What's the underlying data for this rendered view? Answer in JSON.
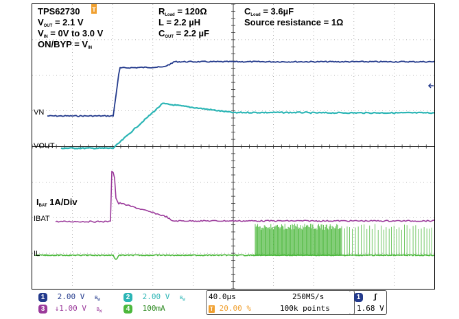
{
  "annotations": {
    "device": "TPS62730",
    "vout_prefix": "V",
    "vout_sub": "OUT",
    "vout_value": " = 2.1 V",
    "vin_prefix": "V",
    "vin_sub": "IN",
    "vin_value": " = 0V to 3.0 V",
    "onbyp_prefix": "ON/BYP = V",
    "onbyp_sub": "IN",
    "rload_prefix": "R",
    "rload_sub": "Load",
    "rload_value": " = 120Ω",
    "l_value": "L = 2.2 µH",
    "cout_prefix": "C",
    "cout_sub": "OUT",
    "cout_value": " = 2.2 µF",
    "cload_prefix": "C",
    "cload_sub": "Load",
    "cload_value": " = 3.6µF",
    "source_resistance": "Source resistance = 1Ω",
    "ibat_prefix": "I",
    "ibat_sub": "BAT",
    "ibat_value": " 1A/Div"
  },
  "channel_labels": {
    "vn": "VN",
    "vout": "VOUT",
    "ibat": "IBAT",
    "il": "IL"
  },
  "status_bar": {
    "ch1": {
      "num": "1",
      "scale": "2.00 V",
      "bw": "B_W"
    },
    "ch2": {
      "num": "2",
      "scale": "2.00 V",
      "bw": "B_W"
    },
    "ch3": {
      "num": "3",
      "scale": "↓1.00 V",
      "bw": "B_W"
    },
    "ch4": {
      "num": "4",
      "scale": "100mA"
    },
    "timebase": "40.0µs",
    "trigger_pos": "20.00 %",
    "sample_rate": "250MS/s",
    "record_length": "100k points",
    "trigger_source": "1",
    "trigger_slope": "ʃ",
    "trigger_level": "1.68 V"
  },
  "colors": {
    "ch1": "#233a8c",
    "ch2": "#2bb5b5",
    "ch3": "#9b3a9b",
    "ch4": "#4cb83c",
    "trigger": "#f0a030"
  }
}
